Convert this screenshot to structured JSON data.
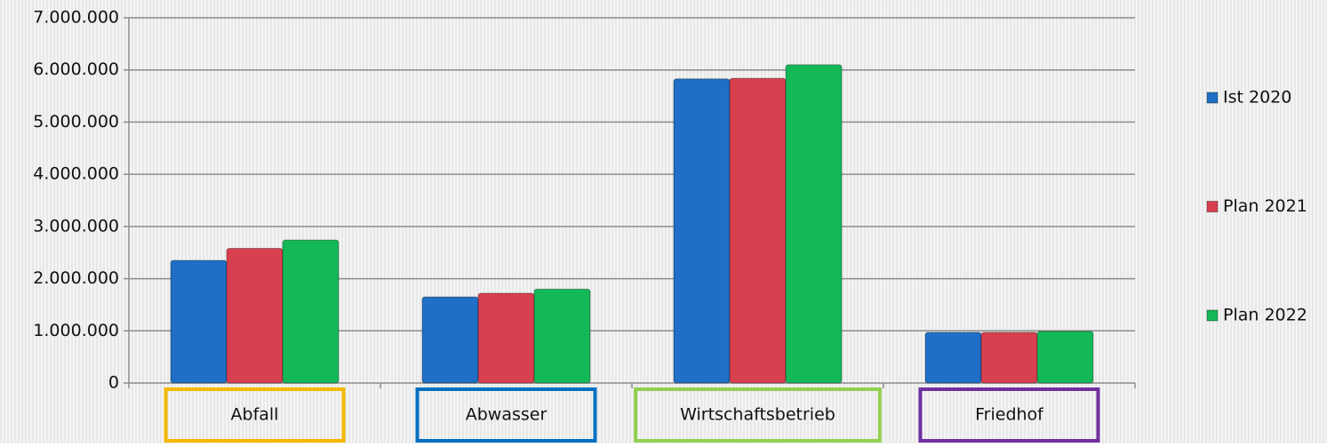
{
  "chart_data": {
    "type": "bar",
    "categories": [
      "Abfall",
      "Abwasser",
      "Wirtschaftsbetrieb",
      "Friedhof"
    ],
    "category_colors": [
      "#f5b800",
      "#0070c0",
      "#92d050",
      "#7030a0"
    ],
    "series": [
      {
        "name": "Ist 2020",
        "color": "#1f6fc6",
        "values": [
          2350000,
          1650000,
          5830000,
          970000
        ]
      },
      {
        "name": "Plan 2021",
        "color": "#d8404f",
        "values": [
          2580000,
          1720000,
          5840000,
          970000
        ]
      },
      {
        "name": "Plan 2022",
        "color": "#14b957",
        "values": [
          2740000,
          1800000,
          6100000,
          990000
        ]
      }
    ],
    "ylim": [
      0,
      7000000
    ],
    "yticks": [
      0,
      {
        "value": 1000000,
        "label": "1.000.000"
      },
      {
        "value": 2000000,
        "label": "2.000.000"
      },
      {
        "value": 3000000,
        "label": "3.000.000"
      },
      {
        "value": 4000000,
        "label": "4.000.000"
      },
      {
        "value": 5000000,
        "label": "5.000.000"
      },
      {
        "value": 6000000,
        "label": "6.000.000"
      },
      {
        "value": 7000000,
        "label": "7.000.000"
      }
    ],
    "grid": true,
    "legend": "right"
  }
}
